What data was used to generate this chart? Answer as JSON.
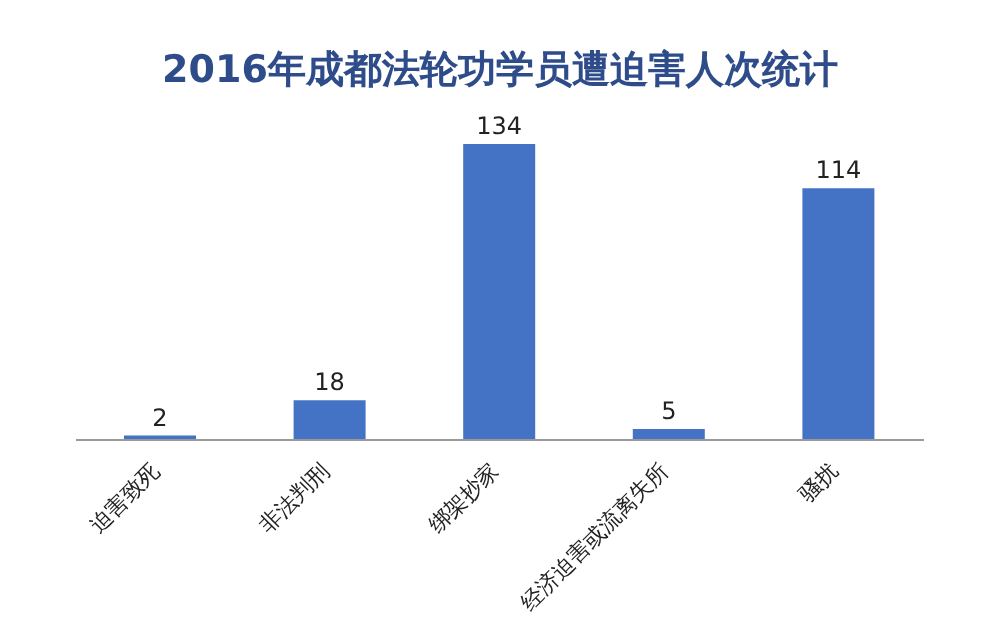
{
  "chart_data": {
    "type": "bar",
    "title": "2016年成都法轮功学员遭迫害人次统计",
    "categories": [
      "迫害致死",
      "非法判刑",
      "绑架抄家",
      "经济迫害或流离失所",
      "骚扰"
    ],
    "values": [
      2,
      18,
      134,
      5,
      114
    ],
    "color": "#4472c4",
    "data_labels": true,
    "grid": false,
    "legend": false
  }
}
